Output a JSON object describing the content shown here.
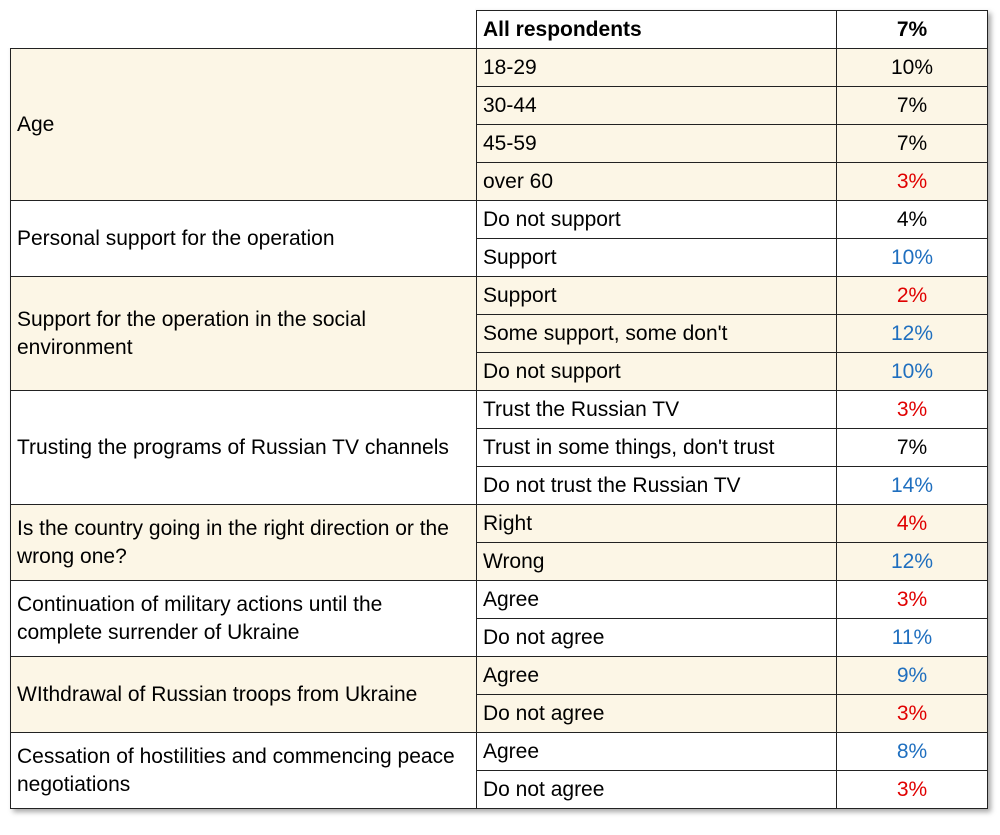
{
  "header": {
    "label": "All respondents",
    "value": "7%"
  },
  "colors": {
    "shade": "#fcf6e6",
    "red": "#e00000",
    "blue": "#1f6fbf",
    "black": "#000000",
    "border": "#222222"
  },
  "groups": [
    {
      "label": "Age",
      "shaded": true,
      "rows": [
        {
          "answer": "18-29",
          "value": "10%",
          "color": "black"
        },
        {
          "answer": "30-44",
          "value": "7%",
          "color": "black"
        },
        {
          "answer": "45-59",
          "value": "7%",
          "color": "black"
        },
        {
          "answer": "over 60",
          "value": "3%",
          "color": "red"
        }
      ]
    },
    {
      "label": "Personal support for the operation",
      "shaded": false,
      "rows": [
        {
          "answer": "Do not support",
          "value": "4%",
          "color": "black"
        },
        {
          "answer": "Support",
          "value": "10%",
          "color": "blue"
        }
      ]
    },
    {
      "label": "Support for the operation in the social environment",
      "shaded": true,
      "rows": [
        {
          "answer": "Support",
          "value": "2%",
          "color": "red"
        },
        {
          "answer": "Some support, some don't",
          "value": "12%",
          "color": "blue"
        },
        {
          "answer": "Do not support",
          "value": "10%",
          "color": "blue"
        }
      ]
    },
    {
      "label": "Trusting the programs of Russian TV channels",
      "shaded": false,
      "rows": [
        {
          "answer": "Trust the Russian TV",
          "value": "3%",
          "color": "red"
        },
        {
          "answer": "Trust in some things, don't trust",
          "value": "7%",
          "color": "black",
          "clipped": true
        },
        {
          "answer": "Do not trust the Russian TV",
          "value": "14%",
          "color": "blue"
        }
      ]
    },
    {
      "label": "Is the country going in the right direction or the wrong one?",
      "shaded": true,
      "rows": [
        {
          "answer": "Right",
          "value": "4%",
          "color": "red"
        },
        {
          "answer": "Wrong",
          "value": "12%",
          "color": "blue"
        }
      ]
    },
    {
      "label": "Continuation of military actions until the complete surrender of Ukraine",
      "shaded": false,
      "rows": [
        {
          "answer": "Agree",
          "value": "3%",
          "color": "red"
        },
        {
          "answer": "Do not agree",
          "value": "11%",
          "color": "blue"
        }
      ]
    },
    {
      "label": "WIthdrawal of Russian troops from Ukraine",
      "shaded": true,
      "rows": [
        {
          "answer": "Agree",
          "value": "9%",
          "color": "blue"
        },
        {
          "answer": "Do not agree",
          "value": "3%",
          "color": "red"
        }
      ]
    },
    {
      "label": "Cessation of hostilities and commencing peace negotiations",
      "shaded": false,
      "rows": [
        {
          "answer": "Agree",
          "value": "8%",
          "color": "blue"
        },
        {
          "answer": "Do not agree",
          "value": "3%",
          "color": "red"
        }
      ]
    }
  ]
}
